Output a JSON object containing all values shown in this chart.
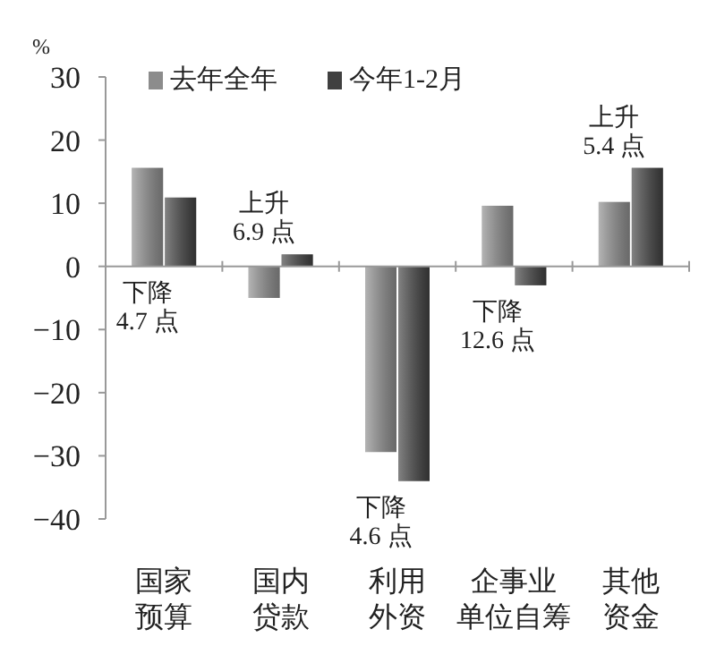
{
  "chart_data": {
    "type": "bar",
    "ylabel": "%",
    "categories": [
      "国家预算",
      "国内贷款",
      "利用外资",
      "企事业单位自筹",
      "其他资金"
    ],
    "series": [
      {
        "name": "去年全年",
        "color": "#8c8c8c",
        "values": [
          15.6,
          -5.0,
          -29.4,
          9.6,
          10.2
        ]
      },
      {
        "name": "今年1-2月",
        "color": "#404040",
        "values": [
          10.9,
          1.9,
          -34.0,
          -3.0,
          15.6
        ]
      }
    ],
    "ylim": [
      -40,
      30
    ],
    "yticks": [
      -40,
      -30,
      -20,
      -10,
      0,
      10,
      20,
      30
    ],
    "legend": "top left",
    "annotations": [
      "下降4.7 点",
      "上升6.9 点",
      "下降4.6 点",
      "下降12.6 点",
      "上升5.4 点"
    ]
  }
}
